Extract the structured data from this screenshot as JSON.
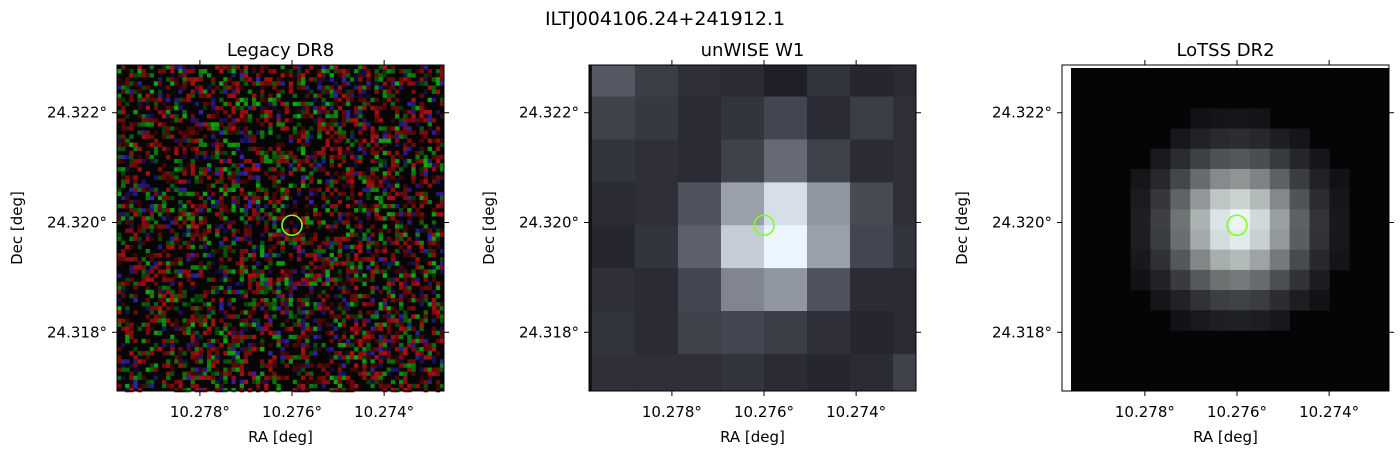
{
  "suptitle": "ILTJ004106.24+241912.1",
  "marker_color": "#80ff20",
  "chart_data": [
    {
      "type": "heatmap",
      "title": "Legacy DR8",
      "xlabel": "RA [deg]",
      "ylabel": "Dec [deg]",
      "xlim": [
        10.2798,
        10.2727
      ],
      "ylim": [
        24.31693,
        24.32287
      ],
      "xticks": [
        10.278,
        10.276,
        10.274
      ],
      "xtick_labels": [
        "10.278°",
        "10.276°",
        "10.274°"
      ],
      "yticks": [
        24.318,
        24.32,
        24.322
      ],
      "ytick_labels": [
        "24.318°",
        "24.320°",
        "24.322°"
      ],
      "image_style": "rgb-noise",
      "marker": {
        "ra": 10.276,
        "dec": 24.31995
      }
    },
    {
      "type": "heatmap",
      "title": "unWISE W1",
      "xlabel": "RA [deg]",
      "ylabel": "Dec [deg]",
      "xlim": [
        10.2798,
        10.2727
      ],
      "ylim": [
        24.31693,
        24.32287
      ],
      "xticks": [
        10.278,
        10.276,
        10.274
      ],
      "xtick_labels": [
        "10.278°",
        "10.276°",
        "10.274°"
      ],
      "yticks": [
        24.318,
        24.32,
        24.322
      ],
      "ytick_labels": [
        "24.318°",
        "24.320°",
        "24.322°"
      ],
      "image_style": "coarse-pixels",
      "marker": {
        "ra": 10.276,
        "dec": 24.31995
      }
    },
    {
      "type": "heatmap",
      "title": "LoTSS DR2",
      "xlabel": "RA [deg]",
      "ylabel": "Dec [deg]",
      "xlim": [
        10.2798,
        10.2727
      ],
      "ylim": [
        24.31693,
        24.32287
      ],
      "xticks": [
        10.278,
        10.276,
        10.274
      ],
      "xtick_labels": [
        "10.278°",
        "10.276°",
        "10.274°"
      ],
      "yticks": [
        24.318,
        24.32,
        24.322
      ],
      "ytick_labels": [
        "24.318°",
        "24.320°",
        "24.322°"
      ],
      "image_style": "smooth-blob",
      "marker": {
        "ra": 10.276,
        "dec": 24.31995
      }
    }
  ]
}
